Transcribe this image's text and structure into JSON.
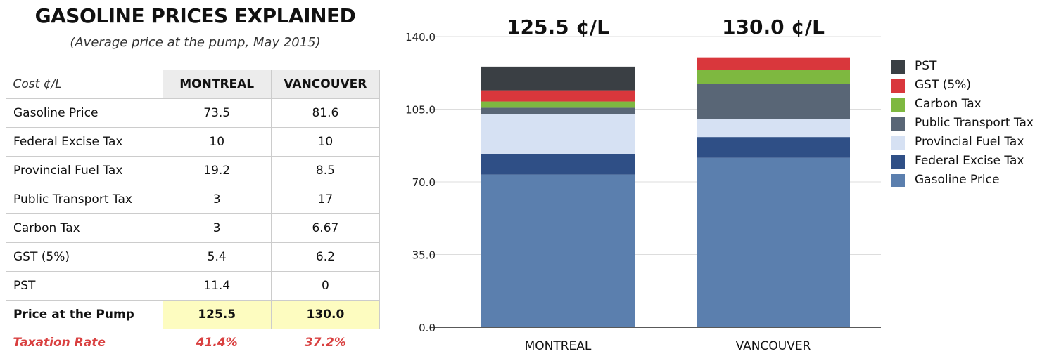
{
  "header": {
    "title": "GASOLINE PRICES EXPLAINED",
    "subtitle": "(Average price at the pump, May 2015)"
  },
  "table": {
    "corner_label": "Cost ¢/L",
    "columns": [
      "MONTREAL",
      "VANCOUVER"
    ],
    "rows": [
      {
        "label": "Gasoline Price",
        "values": [
          "73.5",
          "81.6"
        ]
      },
      {
        "label": "Federal Excise Tax",
        "values": [
          "10",
          "10"
        ]
      },
      {
        "label": "Provincial Fuel Tax",
        "values": [
          "19.2",
          "8.5"
        ]
      },
      {
        "label": "Public Transport Tax",
        "values": [
          "3",
          "17"
        ]
      },
      {
        "label": "Carbon Tax",
        "values": [
          "3",
          "6.67"
        ]
      },
      {
        "label": "GST (5%)",
        "values": [
          "5.4",
          "6.2"
        ]
      },
      {
        "label": "PST",
        "values": [
          "11.4",
          "0"
        ]
      }
    ],
    "total": {
      "label": "Price at the Pump",
      "values": [
        "125.5",
        "130.0"
      ]
    },
    "rate": {
      "label": "Taxation Rate",
      "values": [
        "41.4%",
        "37.2%"
      ]
    }
  },
  "chart_data": {
    "type": "bar",
    "stacked": true,
    "categories": [
      "MONTREAL",
      "VANCOUVER"
    ],
    "bar_labels": [
      "125.5 ¢/L",
      "130.0 ¢/L"
    ],
    "ylim": [
      0,
      140
    ],
    "yticks": [
      "0.0",
      "35.0",
      "70.0",
      "105.0",
      "140.0"
    ],
    "ytick_values": [
      0,
      35,
      70,
      105,
      140
    ],
    "grid": true,
    "legend_position": "right",
    "series": [
      {
        "name": "Gasoline Price",
        "color": "#5b7fae",
        "values": [
          73.5,
          81.6
        ]
      },
      {
        "name": "Federal Excise Tax",
        "color": "#2f4f86",
        "values": [
          10,
          10
        ]
      },
      {
        "name": "Provincial Fuel Tax",
        "color": "#d6e1f3",
        "values": [
          19.2,
          8.5
        ]
      },
      {
        "name": "Public Transport Tax",
        "color": "#596676",
        "values": [
          3,
          17
        ]
      },
      {
        "name": "Carbon Tax",
        "color": "#7eb840",
        "values": [
          3,
          6.67
        ]
      },
      {
        "name": "GST (5%)",
        "color": "#d9373c",
        "values": [
          5.4,
          6.2
        ]
      },
      {
        "name": "PST",
        "color": "#3a3f44",
        "values": [
          11.4,
          0
        ]
      }
    ]
  }
}
